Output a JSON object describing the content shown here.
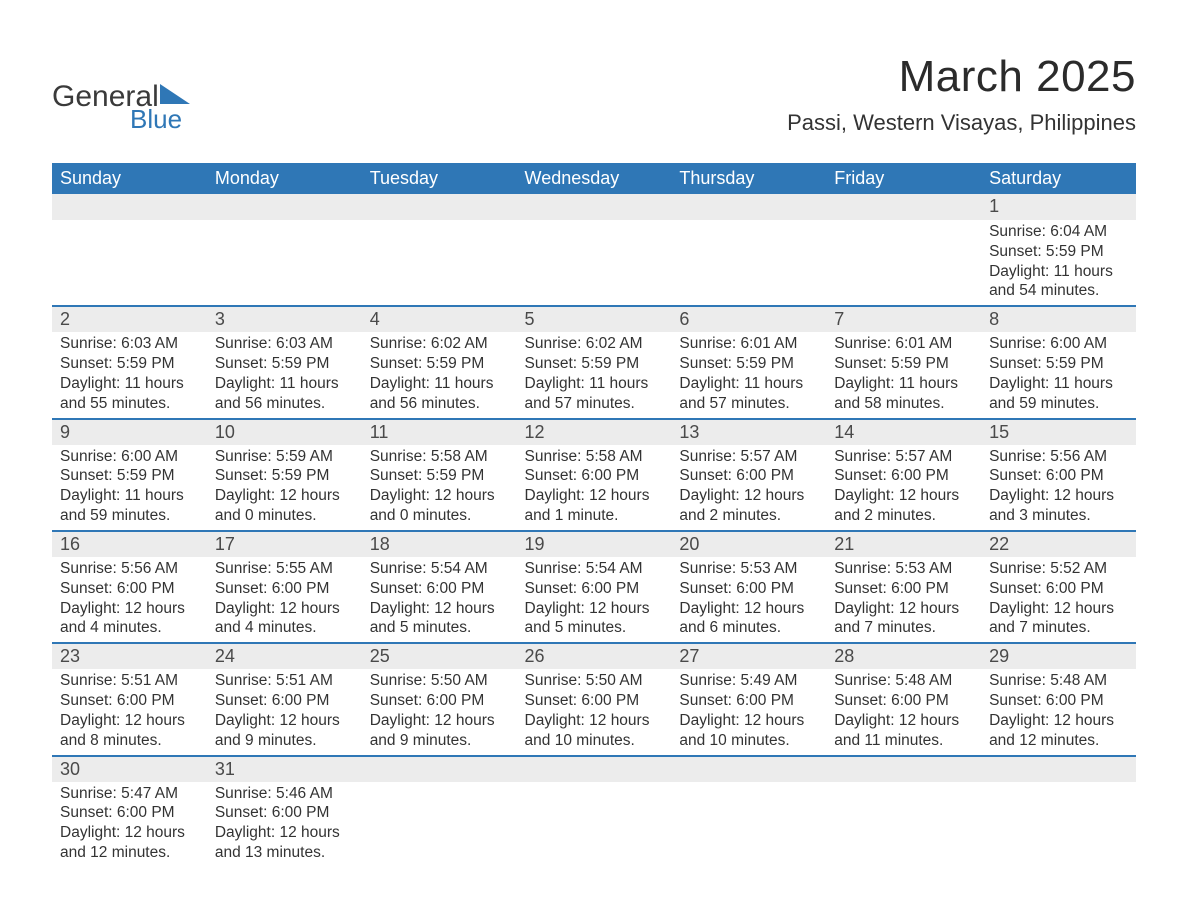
{
  "colors": {
    "header_blue": "#2f77b6",
    "daynum_bg": "#ececec",
    "text": "#333333",
    "page_bg": "#ffffff"
  },
  "logo": {
    "word1": "General",
    "word2": "Blue",
    "word1_color": "#3a3a3a",
    "word2_color": "#2f77b6",
    "triangle_color": "#2f77b6"
  },
  "title": "March 2025",
  "location": "Passi, Western Visayas, Philippines",
  "weekdays": [
    "Sunday",
    "Monday",
    "Tuesday",
    "Wednesday",
    "Thursday",
    "Friday",
    "Saturday"
  ],
  "weeks": [
    {
      "days": [
        null,
        null,
        null,
        null,
        null,
        null,
        {
          "n": "1",
          "sunrise": "Sunrise: 6:04 AM",
          "sunset": "Sunset: 5:59 PM",
          "day1": "Daylight: 11 hours",
          "day2": "and 54 minutes."
        }
      ]
    },
    {
      "days": [
        {
          "n": "2",
          "sunrise": "Sunrise: 6:03 AM",
          "sunset": "Sunset: 5:59 PM",
          "day1": "Daylight: 11 hours",
          "day2": "and 55 minutes."
        },
        {
          "n": "3",
          "sunrise": "Sunrise: 6:03 AM",
          "sunset": "Sunset: 5:59 PM",
          "day1": "Daylight: 11 hours",
          "day2": "and 56 minutes."
        },
        {
          "n": "4",
          "sunrise": "Sunrise: 6:02 AM",
          "sunset": "Sunset: 5:59 PM",
          "day1": "Daylight: 11 hours",
          "day2": "and 56 minutes."
        },
        {
          "n": "5",
          "sunrise": "Sunrise: 6:02 AM",
          "sunset": "Sunset: 5:59 PM",
          "day1": "Daylight: 11 hours",
          "day2": "and 57 minutes."
        },
        {
          "n": "6",
          "sunrise": "Sunrise: 6:01 AM",
          "sunset": "Sunset: 5:59 PM",
          "day1": "Daylight: 11 hours",
          "day2": "and 57 minutes."
        },
        {
          "n": "7",
          "sunrise": "Sunrise: 6:01 AM",
          "sunset": "Sunset: 5:59 PM",
          "day1": "Daylight: 11 hours",
          "day2": "and 58 minutes."
        },
        {
          "n": "8",
          "sunrise": "Sunrise: 6:00 AM",
          "sunset": "Sunset: 5:59 PM",
          "day1": "Daylight: 11 hours",
          "day2": "and 59 minutes."
        }
      ]
    },
    {
      "days": [
        {
          "n": "9",
          "sunrise": "Sunrise: 6:00 AM",
          "sunset": "Sunset: 5:59 PM",
          "day1": "Daylight: 11 hours",
          "day2": "and 59 minutes."
        },
        {
          "n": "10",
          "sunrise": "Sunrise: 5:59 AM",
          "sunset": "Sunset: 5:59 PM",
          "day1": "Daylight: 12 hours",
          "day2": "and 0 minutes."
        },
        {
          "n": "11",
          "sunrise": "Sunrise: 5:58 AM",
          "sunset": "Sunset: 5:59 PM",
          "day1": "Daylight: 12 hours",
          "day2": "and 0 minutes."
        },
        {
          "n": "12",
          "sunrise": "Sunrise: 5:58 AM",
          "sunset": "Sunset: 6:00 PM",
          "day1": "Daylight: 12 hours",
          "day2": "and 1 minute."
        },
        {
          "n": "13",
          "sunrise": "Sunrise: 5:57 AM",
          "sunset": "Sunset: 6:00 PM",
          "day1": "Daylight: 12 hours",
          "day2": "and 2 minutes."
        },
        {
          "n": "14",
          "sunrise": "Sunrise: 5:57 AM",
          "sunset": "Sunset: 6:00 PM",
          "day1": "Daylight: 12 hours",
          "day2": "and 2 minutes."
        },
        {
          "n": "15",
          "sunrise": "Sunrise: 5:56 AM",
          "sunset": "Sunset: 6:00 PM",
          "day1": "Daylight: 12 hours",
          "day2": "and 3 minutes."
        }
      ]
    },
    {
      "days": [
        {
          "n": "16",
          "sunrise": "Sunrise: 5:56 AM",
          "sunset": "Sunset: 6:00 PM",
          "day1": "Daylight: 12 hours",
          "day2": "and 4 minutes."
        },
        {
          "n": "17",
          "sunrise": "Sunrise: 5:55 AM",
          "sunset": "Sunset: 6:00 PM",
          "day1": "Daylight: 12 hours",
          "day2": "and 4 minutes."
        },
        {
          "n": "18",
          "sunrise": "Sunrise: 5:54 AM",
          "sunset": "Sunset: 6:00 PM",
          "day1": "Daylight: 12 hours",
          "day2": "and 5 minutes."
        },
        {
          "n": "19",
          "sunrise": "Sunrise: 5:54 AM",
          "sunset": "Sunset: 6:00 PM",
          "day1": "Daylight: 12 hours",
          "day2": "and 5 minutes."
        },
        {
          "n": "20",
          "sunrise": "Sunrise: 5:53 AM",
          "sunset": "Sunset: 6:00 PM",
          "day1": "Daylight: 12 hours",
          "day2": "and 6 minutes."
        },
        {
          "n": "21",
          "sunrise": "Sunrise: 5:53 AM",
          "sunset": "Sunset: 6:00 PM",
          "day1": "Daylight: 12 hours",
          "day2": "and 7 minutes."
        },
        {
          "n": "22",
          "sunrise": "Sunrise: 5:52 AM",
          "sunset": "Sunset: 6:00 PM",
          "day1": "Daylight: 12 hours",
          "day2": "and 7 minutes."
        }
      ]
    },
    {
      "days": [
        {
          "n": "23",
          "sunrise": "Sunrise: 5:51 AM",
          "sunset": "Sunset: 6:00 PM",
          "day1": "Daylight: 12 hours",
          "day2": "and 8 minutes."
        },
        {
          "n": "24",
          "sunrise": "Sunrise: 5:51 AM",
          "sunset": "Sunset: 6:00 PM",
          "day1": "Daylight: 12 hours",
          "day2": "and 9 minutes."
        },
        {
          "n": "25",
          "sunrise": "Sunrise: 5:50 AM",
          "sunset": "Sunset: 6:00 PM",
          "day1": "Daylight: 12 hours",
          "day2": "and 9 minutes."
        },
        {
          "n": "26",
          "sunrise": "Sunrise: 5:50 AM",
          "sunset": "Sunset: 6:00 PM",
          "day1": "Daylight: 12 hours",
          "day2": "and 10 minutes."
        },
        {
          "n": "27",
          "sunrise": "Sunrise: 5:49 AM",
          "sunset": "Sunset: 6:00 PM",
          "day1": "Daylight: 12 hours",
          "day2": "and 10 minutes."
        },
        {
          "n": "28",
          "sunrise": "Sunrise: 5:48 AM",
          "sunset": "Sunset: 6:00 PM",
          "day1": "Daylight: 12 hours",
          "day2": "and 11 minutes."
        },
        {
          "n": "29",
          "sunrise": "Sunrise: 5:48 AM",
          "sunset": "Sunset: 6:00 PM",
          "day1": "Daylight: 12 hours",
          "day2": "and 12 minutes."
        }
      ]
    },
    {
      "days": [
        {
          "n": "30",
          "sunrise": "Sunrise: 5:47 AM",
          "sunset": "Sunset: 6:00 PM",
          "day1": "Daylight: 12 hours",
          "day2": "and 12 minutes."
        },
        {
          "n": "31",
          "sunrise": "Sunrise: 5:46 AM",
          "sunset": "Sunset: 6:00 PM",
          "day1": "Daylight: 12 hours",
          "day2": "and 13 minutes."
        },
        null,
        null,
        null,
        null,
        null
      ]
    }
  ]
}
